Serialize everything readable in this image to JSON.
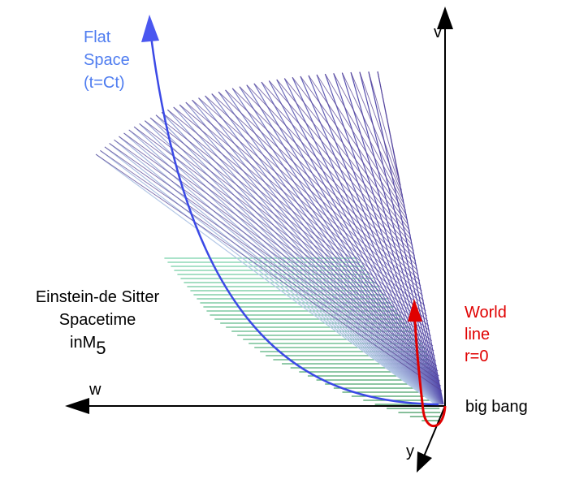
{
  "labels": {
    "v": "v",
    "w": "w",
    "y": "y",
    "origin": "big bang",
    "flat_space": [
      "Flat",
      "Space",
      "(t=Ct)"
    ],
    "spacetime": [
      "Einstein-de Sitter",
      "Spacetime",
      "inM"
    ],
    "spacetime_subscript": "5",
    "world_line": [
      "World",
      "line",
      "r=0"
    ]
  }
}
